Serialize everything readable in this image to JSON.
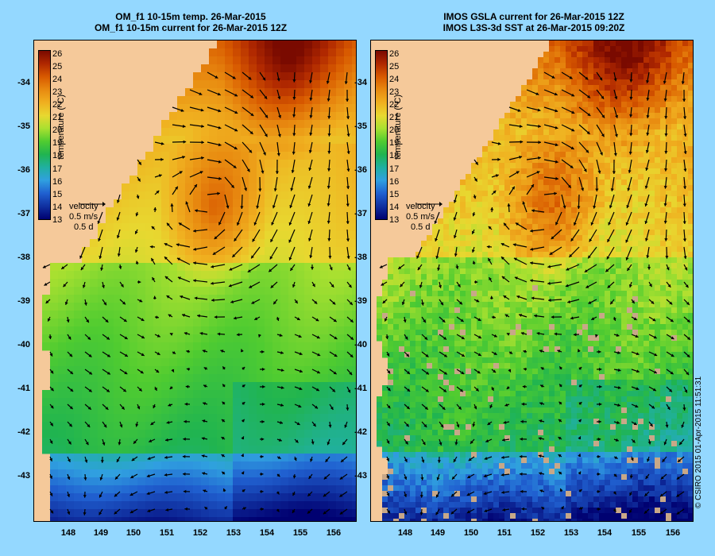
{
  "left_panel": {
    "title_line1": "OM_f1 10-15m temp. 26-Mar-2015",
    "title_line2": "OM_f1 10-15m current for 26-Mar-2015 12Z"
  },
  "right_panel": {
    "title_line1": "IMOS GSLA current for 26-Mar-2015 12Z",
    "title_line2": "IMOS L3S-3d SST at 26-Mar-2015 09:20Z"
  },
  "colorbar": {
    "title": "temperature (°C)",
    "ticks": [
      "26",
      "25",
      "24",
      "23",
      "22",
      "21",
      "20",
      "19",
      "18",
      "17",
      "16",
      "15",
      "14",
      "13"
    ]
  },
  "velocity_legend": {
    "label": "velocity",
    "speed": "0.5 m/s",
    "time": "0.5 d"
  },
  "y_axis": {
    "ticks": [
      "-34",
      "-35",
      "-36",
      "-37",
      "-38",
      "-39",
      "-40",
      "-41",
      "-42",
      "-43"
    ]
  },
  "x_axis": {
    "ticks": [
      "148",
      "149",
      "150",
      "151",
      "152",
      "153",
      "154",
      "155",
      "156"
    ]
  },
  "copyright": "© CSIRO 2015  01-Apr-2015 11:51:31",
  "colors": {
    "background": "#94d8ff",
    "land": "#f5c99a",
    "scale": [
      "#7a0a00",
      "#b02800",
      "#d85a00",
      "#e88a10",
      "#f0b020",
      "#e8d830",
      "#a8e030",
      "#50cc30",
      "#20b450",
      "#20b0a0",
      "#30a0e0",
      "#2060d0",
      "#1030a0",
      "#000070"
    ]
  }
}
